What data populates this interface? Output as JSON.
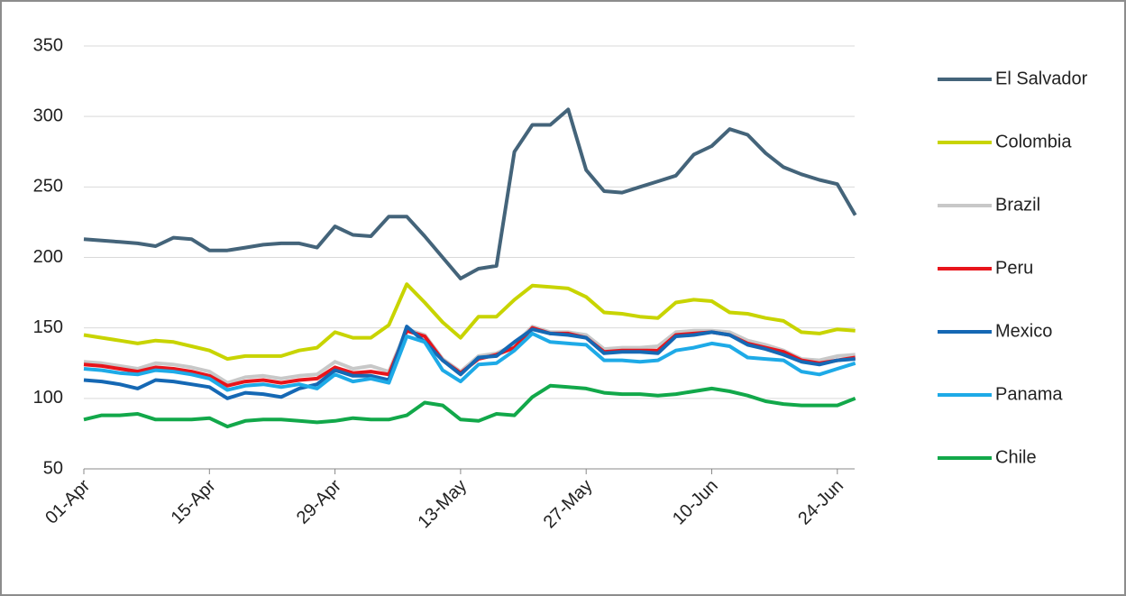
{
  "chart_data": {
    "type": "line",
    "categories": [
      "01-Apr",
      null,
      null,
      null,
      null,
      null,
      null,
      "15-Apr",
      null,
      null,
      null,
      null,
      null,
      null,
      "29-Apr",
      null,
      null,
      null,
      null,
      null,
      null,
      "13-May",
      null,
      null,
      null,
      null,
      null,
      null,
      "27-May",
      null,
      null,
      null,
      null,
      null,
      null,
      "10-Jun",
      null,
      null,
      null,
      null,
      null,
      null,
      "24-Jun",
      null
    ],
    "series": [
      {
        "name": "El Salvador",
        "color": "#44647a",
        "values": [
          213,
          212,
          211,
          210,
          208,
          214,
          213,
          205,
          205,
          207,
          209,
          210,
          210,
          207,
          222,
          216,
          215,
          229,
          229,
          215,
          200,
          185,
          192,
          194,
          275,
          294,
          294,
          305,
          262,
          247,
          246,
          250,
          254,
          258,
          273,
          279,
          291,
          287,
          274,
          264,
          259,
          255,
          252,
          230
        ]
      },
      {
        "name": "Colombia",
        "color": "#c8d400",
        "values": [
          145,
          143,
          141,
          139,
          141,
          140,
          137,
          134,
          128,
          130,
          130,
          130,
          134,
          136,
          147,
          143,
          143,
          152,
          181,
          168,
          154,
          143,
          158,
          158,
          170,
          180,
          179,
          178,
          172,
          161,
          160,
          158,
          157,
          168,
          170,
          169,
          161,
          160,
          157,
          155,
          147,
          146,
          149,
          148
        ]
      },
      {
        "name": "Brazil",
        "color": "#c8c8c8",
        "values": [
          126,
          125,
          123,
          121,
          125,
          124,
          122,
          119,
          111,
          115,
          116,
          114,
          116,
          117,
          126,
          121,
          123,
          119,
          149,
          145,
          128,
          119,
          130,
          132,
          138,
          151,
          147,
          147,
          145,
          135,
          136,
          136,
          137,
          147,
          148,
          148,
          147,
          141,
          138,
          134,
          128,
          127,
          130,
          131
        ]
      },
      {
        "name": "Peru",
        "color": "#e8141b",
        "values": [
          124,
          123,
          121,
          119,
          122,
          121,
          119,
          116,
          109,
          112,
          113,
          111,
          113,
          114,
          122,
          118,
          119,
          117,
          148,
          144,
          127,
          118,
          128,
          131,
          136,
          150,
          146,
          146,
          143,
          133,
          134,
          134,
          134,
          145,
          146,
          147,
          145,
          139,
          136,
          133,
          127,
          125,
          127,
          129
        ]
      },
      {
        "name": "Mexico",
        "color": "#1568b4",
        "values": [
          113,
          112,
          110,
          107,
          113,
          112,
          110,
          108,
          100,
          104,
          103,
          101,
          107,
          110,
          120,
          116,
          116,
          113,
          151,
          140,
          127,
          117,
          129,
          130,
          140,
          149,
          146,
          145,
          143,
          132,
          133,
          133,
          132,
          144,
          145,
          147,
          145,
          138,
          135,
          131,
          126,
          124,
          127,
          128
        ]
      },
      {
        "name": "Panama",
        "color": "#1eaae7",
        "values": [
          121,
          120,
          118,
          117,
          120,
          119,
          117,
          114,
          106,
          109,
          110,
          108,
          110,
          107,
          117,
          112,
          114,
          111,
          144,
          140,
          120,
          112,
          124,
          125,
          134,
          146,
          140,
          139,
          138,
          127,
          127,
          126,
          127,
          134,
          136,
          139,
          137,
          129,
          128,
          127,
          119,
          117,
          121,
          125
        ]
      },
      {
        "name": "Chile",
        "color": "#12a84a",
        "values": [
          85,
          88,
          88,
          89,
          85,
          85,
          85,
          86,
          80,
          84,
          85,
          85,
          84,
          83,
          84,
          86,
          85,
          85,
          88,
          97,
          95,
          85,
          84,
          89,
          88,
          101,
          109,
          108,
          107,
          104,
          103,
          103,
          102,
          103,
          105,
          107,
          105,
          102,
          98,
          96,
          95,
          95,
          95,
          100
        ]
      }
    ],
    "ylim": [
      50,
      350
    ],
    "yticks": [
      50,
      100,
      150,
      200,
      250,
      300,
      350
    ],
    "grid": true,
    "legend": "right"
  }
}
